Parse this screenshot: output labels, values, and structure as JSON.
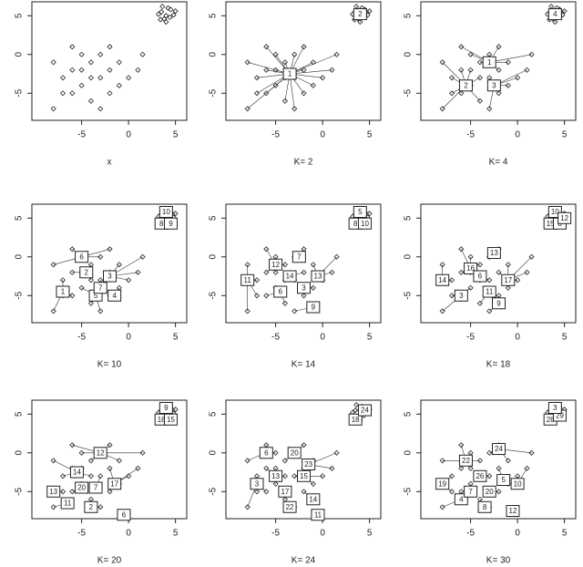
{
  "chart_data": [
    {
      "type": "scatter",
      "xlabel": "x",
      "x": [
        3.5,
        4,
        4.5,
        3.8,
        4.2,
        3.2,
        4.8,
        4,
        3.6,
        4.4,
        5,
        3.4,
        -8,
        -7,
        -6,
        -5,
        -4,
        -3,
        -2,
        -5,
        -6,
        -3,
        -4,
        -2,
        -1,
        -7,
        -8,
        -1,
        0,
        1,
        -3,
        -5,
        -6,
        -4,
        1.5,
        -2
      ],
      "values": [
        5.5,
        5,
        5.8,
        4.6,
        6,
        5.2,
        5.1,
        4.2,
        6.2,
        4.8,
        5.6,
        4.5,
        -1,
        -3,
        1,
        -2,
        -1,
        -3,
        -2,
        -4,
        -5,
        0,
        -6,
        -5,
        -4,
        -5,
        -7,
        -1,
        -3,
        -2,
        -7,
        0,
        -2,
        -3,
        0,
        1
      ],
      "xlim": [
        -10.3,
        6.2
      ],
      "ylim": [
        -8.5,
        6.8
      ],
      "xticks": [
        -5,
        0,
        5
      ],
      "yticks": [
        -5,
        0,
        5
      ]
    },
    {
      "type": "scatter",
      "xlabel": "K= 2",
      "x": [
        3.5,
        4,
        4.5,
        3.8,
        4.2,
        3.2,
        4.8,
        4,
        3.6,
        4.4,
        5,
        3.4,
        -8,
        -7,
        -6,
        -5,
        -4,
        -3,
        -2,
        -5,
        -6,
        -3,
        -4,
        -2,
        -1,
        -7,
        -8,
        -1,
        0,
        1,
        -3,
        -5,
        -6,
        -4,
        1.5,
        -2
      ],
      "values": [
        5.5,
        5,
        5.8,
        4.6,
        6,
        5.2,
        5.1,
        4.2,
        6.2,
        4.8,
        5.6,
        4.5,
        -1,
        -3,
        1,
        -2,
        -1,
        -3,
        -2,
        -4,
        -5,
        0,
        -6,
        -5,
        -4,
        -5,
        -7,
        -1,
        -3,
        -2,
        -7,
        0,
        -2,
        -3,
        0,
        1
      ],
      "xlim": [
        -10.3,
        6.2
      ],
      "ylim": [
        -8.5,
        6.8
      ],
      "xticks": [
        -5,
        0,
        5
      ],
      "yticks": [
        -5,
        0,
        5
      ],
      "centers": {
        "x": [
          -3.5,
          4
        ],
        "y": [
          -2.5,
          5.2
        ],
        "ids": [
          1,
          2
        ]
      }
    },
    {
      "type": "scatter",
      "xlabel": "K= 4",
      "x": [
        3.5,
        4,
        4.5,
        3.8,
        4.2,
        3.2,
        4.8,
        4,
        3.6,
        4.4,
        5,
        3.4,
        -8,
        -7,
        -6,
        -5,
        -4,
        -3,
        -2,
        -5,
        -6,
        -3,
        -4,
        -2,
        -1,
        -7,
        -8,
        -1,
        0,
        1,
        -3,
        -5,
        -6,
        -4,
        1.5,
        -2
      ],
      "values": [
        5.5,
        5,
        5.8,
        4.6,
        6,
        5.2,
        5.1,
        4.2,
        6.2,
        4.8,
        5.6,
        4.5,
        -1,
        -3,
        1,
        -2,
        -1,
        -3,
        -2,
        -4,
        -5,
        0,
        -6,
        -5,
        -4,
        -5,
        -7,
        -1,
        -3,
        -2,
        -7,
        0,
        -2,
        -3,
        0,
        1
      ],
      "xlim": [
        -10.3,
        6.2
      ],
      "ylim": [
        -8.5,
        6.8
      ],
      "xticks": [
        -5,
        0,
        5
      ],
      "yticks": [
        -5,
        0,
        5
      ],
      "centers": {
        "x": [
          -3,
          -5.5,
          -2.5,
          4
        ],
        "y": [
          -1,
          -4,
          -4,
          5.2
        ],
        "ids": [
          1,
          2,
          3,
          4
        ]
      }
    },
    {
      "type": "scatter",
      "xlabel": "K= 10",
      "x": [
        3.5,
        4,
        4.5,
        3.8,
        4.2,
        3.2,
        4.8,
        4,
        3.6,
        4.4,
        5,
        3.4,
        -8,
        -7,
        -6,
        -5,
        -4,
        -3,
        -2,
        -5,
        -6,
        -3,
        -4,
        -2,
        -1,
        -7,
        -8,
        -1,
        0,
        1,
        -3,
        -5,
        -6,
        -4,
        1.5,
        -2
      ],
      "values": [
        5.5,
        5,
        5.8,
        4.6,
        6,
        5.2,
        5.1,
        4.2,
        6.2,
        4.8,
        5.6,
        4.5,
        -1,
        -3,
        1,
        -2,
        -1,
        -3,
        -2,
        -4,
        -5,
        0,
        -6,
        -5,
        -4,
        -5,
        -7,
        -1,
        -3,
        -2,
        -7,
        0,
        -2,
        -3,
        0,
        1
      ],
      "xlim": [
        -10.3,
        6.2
      ],
      "ylim": [
        -8.5,
        6.8
      ],
      "xticks": [
        -5,
        0,
        5
      ],
      "yticks": [
        -5,
        0,
        5
      ],
      "centers": {
        "x": [
          -7,
          -4.5,
          -2,
          -1.5,
          -3.5,
          -5,
          -3,
          3.5,
          4.5,
          4
        ],
        "y": [
          -4.5,
          -2,
          -2.5,
          -5,
          -5,
          0,
          -4,
          4.3,
          4.3,
          5.8
        ],
        "ids": [
          1,
          2,
          3,
          4,
          5,
          6,
          7,
          8,
          9,
          10
        ]
      }
    },
    {
      "type": "scatter",
      "xlabel": "K= 14",
      "x": [
        3.5,
        4,
        4.5,
        3.8,
        4.2,
        3.2,
        4.8,
        4,
        3.6,
        4.4,
        5,
        3.4,
        -8,
        -7,
        -6,
        -5,
        -4,
        -3,
        -2,
        -5,
        -6,
        -3,
        -4,
        -2,
        -1,
        -7,
        -8,
        -1,
        0,
        1,
        -3,
        -5,
        -6,
        -4,
        1.5,
        -2
      ],
      "values": [
        5.5,
        5,
        5.8,
        4.6,
        6,
        5.2,
        5.1,
        4.2,
        6.2,
        4.8,
        5.6,
        4.5,
        -1,
        -3,
        1,
        -2,
        -1,
        -3,
        -2,
        -4,
        -5,
        0,
        -6,
        -5,
        -4,
        -5,
        -7,
        -1,
        -3,
        -2,
        -7,
        0,
        -2,
        -3,
        0,
        1
      ],
      "xlim": [
        -10.3,
        6.2
      ],
      "ylim": [
        -8.5,
        6.8
      ],
      "xticks": [
        -5,
        0,
        5
      ],
      "yticks": [
        -5,
        0,
        5
      ],
      "centers": {
        "x": [
          -8,
          -5,
          -3.5,
          -2.5,
          -0.5,
          -4.5,
          -2,
          -1,
          3.5,
          4.5,
          4
        ],
        "y": [
          -3,
          -1,
          -2.5,
          0,
          -2.5,
          -4.5,
          -4,
          -6.5,
          4.3,
          4.3,
          5.8
        ],
        "ids": [
          11,
          12,
          14,
          7,
          13,
          6,
          3,
          9,
          8,
          10,
          5
        ]
      }
    },
    {
      "type": "scatter",
      "xlabel": "K= 18",
      "x": [
        3.5,
        4,
        4.5,
        3.8,
        4.2,
        3.2,
        4.8,
        4,
        3.6,
        4.4,
        5,
        3.4,
        -8,
        -7,
        -6,
        -5,
        -4,
        -3,
        -2,
        -5,
        -6,
        -3,
        -4,
        -2,
        -1,
        -7,
        -8,
        -1,
        0,
        1,
        -3,
        -5,
        -6,
        -4,
        1.5,
        -2
      ],
      "values": [
        5.5,
        5,
        5.8,
        4.6,
        6,
        5.2,
        5.1,
        4.2,
        6.2,
        4.8,
        5.6,
        4.5,
        -1,
        -3,
        1,
        -2,
        -1,
        -3,
        -2,
        -4,
        -5,
        0,
        -6,
        -5,
        -4,
        -5,
        -7,
        -1,
        -3,
        -2,
        -7,
        0,
        -2,
        -3,
        0,
        1
      ],
      "xlim": [
        -10.3,
        6.2
      ],
      "ylim": [
        -8.5,
        6.8
      ],
      "xticks": [
        -5,
        0,
        5
      ],
      "yticks": [
        -5,
        0,
        5
      ],
      "centers": {
        "x": [
          -8,
          -5,
          -2.5,
          -4,
          -1,
          -3,
          -6,
          -2,
          3.5,
          4.5,
          4,
          5
        ],
        "y": [
          -3,
          -1.5,
          0.5,
          -2.5,
          -3,
          -4.5,
          -5,
          -6,
          4.3,
          4.3,
          5.8,
          5
        ],
        "ids": [
          14,
          16,
          13,
          6,
          17,
          11,
          3,
          9,
          15,
          8,
          10,
          12
        ]
      }
    },
    {
      "type": "scatter",
      "xlabel": "K= 20",
      "x": [
        3.5,
        4,
        4.5,
        3.8,
        4.2,
        3.2,
        4.8,
        4,
        3.6,
        4.4,
        5,
        3.4,
        -8,
        -7,
        -6,
        -5,
        -4,
        -3,
        -2,
        -5,
        -6,
        -3,
        -4,
        -2,
        -1,
        -7,
        -8,
        -1,
        0,
        1,
        -3,
        -5,
        -6,
        -4,
        1.5,
        -2
      ],
      "values": [
        5.5,
        5,
        5.8,
        4.6,
        6,
        5.2,
        5.1,
        4.2,
        6.2,
        4.8,
        5.6,
        4.5,
        -1,
        -3,
        1,
        -2,
        -1,
        -3,
        -2,
        -4,
        -5,
        0,
        -6,
        -5,
        -4,
        -5,
        -7,
        -1,
        -3,
        -2,
        -7,
        0,
        -2,
        -3,
        0,
        1
      ],
      "xlim": [
        -10.3,
        6.2
      ],
      "ylim": [
        -8.5,
        6.8
      ],
      "xticks": [
        -5,
        0,
        5
      ],
      "yticks": [
        -5,
        0,
        5
      ],
      "centers": {
        "x": [
          -8,
          -5.5,
          -3,
          -5,
          -3.5,
          -1.5,
          -6.5,
          -4,
          -0.5,
          3.5,
          4.5,
          4
        ],
        "y": [
          -5,
          -2.5,
          0,
          -4.5,
          -4.5,
          -4,
          -6.5,
          -7,
          -8,
          4.3,
          4.3,
          5.8
        ],
        "ids": [
          13,
          14,
          12,
          20,
          7,
          17,
          11,
          2,
          6,
          18,
          15,
          9
        ]
      }
    },
    {
      "type": "scatter",
      "xlabel": "K= 24",
      "x": [
        3.5,
        4,
        4.5,
        3.8,
        4.2,
        3.2,
        4.8,
        4,
        3.6,
        4.4,
        5,
        3.4,
        -8,
        -7,
        -6,
        -5,
        -4,
        -3,
        -2,
        -5,
        -6,
        -3,
        -4,
        -2,
        -1,
        -7,
        -8,
        -1,
        0,
        1,
        -3,
        -5,
        -6,
        -4,
        1.5,
        -2
      ],
      "values": [
        5.5,
        5,
        5.8,
        4.6,
        6,
        5.2,
        5.1,
        4.2,
        6.2,
        4.8,
        5.6,
        4.5,
        -1,
        -3,
        1,
        -2,
        -1,
        -3,
        -2,
        -4,
        -5,
        0,
        -6,
        -5,
        -4,
        -5,
        -7,
        -1,
        -3,
        -2,
        -7,
        0,
        -2,
        -3,
        0,
        1
      ],
      "xlim": [
        -10.3,
        6.2
      ],
      "ylim": [
        -8.5,
        6.8
      ],
      "xticks": [
        -5,
        0,
        5
      ],
      "yticks": [
        -5,
        0,
        5
      ],
      "centers": {
        "x": [
          -6,
          -3,
          -1.5,
          -5,
          -2,
          -4,
          -1,
          -7,
          -3.5,
          -0.5,
          3.5,
          4.5
        ],
        "y": [
          0,
          0,
          -1.5,
          -3,
          -3,
          -5,
          -6,
          -4,
          -7,
          -8,
          4.3,
          5.5
        ],
        "ids": [
          6,
          20,
          23,
          13,
          15,
          17,
          14,
          3,
          22,
          11,
          18,
          24
        ]
      }
    },
    {
      "type": "scatter",
      "xlabel": "K= 30",
      "x": [
        3.5,
        4,
        4.5,
        3.8,
        4.2,
        3.2,
        4.8,
        4,
        3.6,
        4.4,
        5,
        3.4,
        -8,
        -7,
        -6,
        -5,
        -4,
        -3,
        -2,
        -5,
        -6,
        -3,
        -4,
        -2,
        -1,
        -7,
        -8,
        -1,
        0,
        1,
        -3,
        -5,
        -6,
        -4,
        1.5,
        -2
      ],
      "values": [
        5.5,
        5,
        5.8,
        4.6,
        6,
        5.2,
        5.1,
        4.2,
        6.2,
        4.8,
        5.6,
        4.5,
        -1,
        -3,
        1,
        -2,
        -1,
        -3,
        -2,
        -4,
        -5,
        0,
        -6,
        -5,
        -4,
        -5,
        -7,
        -1,
        -3,
        -2,
        -7,
        0,
        -2,
        -3,
        0,
        1
      ],
      "xlim": [
        -10.3,
        6.2
      ],
      "ylim": [
        -8.5,
        6.8
      ],
      "xticks": [
        -5,
        0,
        5
      ],
      "yticks": [
        -5,
        0,
        5
      ],
      "centers": {
        "x": [
          -5.5,
          -2,
          -8,
          -6,
          -4,
          -3,
          -1.5,
          0,
          -5,
          -3.5,
          -0.5,
          3.5,
          4.5,
          4
        ],
        "y": [
          -1,
          0.5,
          -4,
          -6,
          -3,
          -5,
          -3.5,
          -4,
          -5,
          -7,
          -7.5,
          4.3,
          4.8,
          5.8
        ],
        "ids": [
          22,
          24,
          19,
          4,
          26,
          20,
          5,
          10,
          7,
          8,
          12,
          28,
          29,
          3
        ]
      }
    }
  ]
}
